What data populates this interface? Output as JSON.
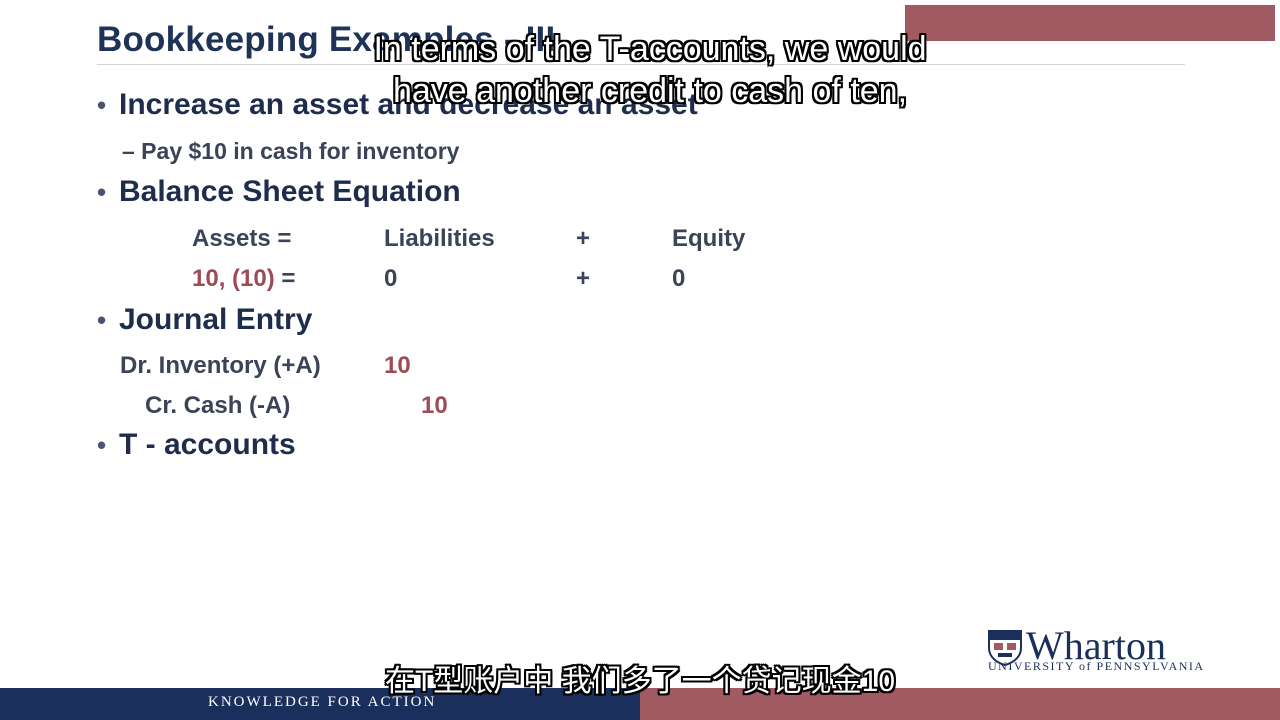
{
  "slide": {
    "title": "Bookkeeping Examples - III",
    "bullets": [
      {
        "label": "Increase an asset and decrease an asset"
      },
      {
        "label": "Balance Sheet Equation"
      },
      {
        "label": "Journal Entry"
      },
      {
        "label": "T - accounts"
      }
    ],
    "sub_bullet": "– Pay $10 in cash for inventory",
    "equation": {
      "header": {
        "assets": "Assets =",
        "liabilities": "Liabilities",
        "plus": "+",
        "equity": "Equity"
      },
      "row": {
        "assets_a": "10, ",
        "assets_b": "(10)",
        "assets_eq": " =",
        "liabilities": "0",
        "plus": "+",
        "equity": "0"
      }
    },
    "journal": {
      "debit_label": "Dr. Inventory (+A)",
      "debit_amount": "10",
      "credit_label": "Cr. Cash (-A)",
      "credit_amount": "10"
    }
  },
  "captions": {
    "english_line1": "In terms of the T-accounts, we would",
    "english_line2": "have another credit to cash of ten,",
    "chinese": "在T型账户中 我们多了一个贷记现金10"
  },
  "footer": {
    "tagline": "KNOWLEDGE FOR ACTION",
    "logo_word": "Wharton",
    "logo_univ": "UNIVERSITY of PENNSYLVANIA"
  },
  "colors": {
    "navy": "#1b2f5c",
    "accent_red": "#a15a61",
    "text": "#1f2d4d"
  }
}
